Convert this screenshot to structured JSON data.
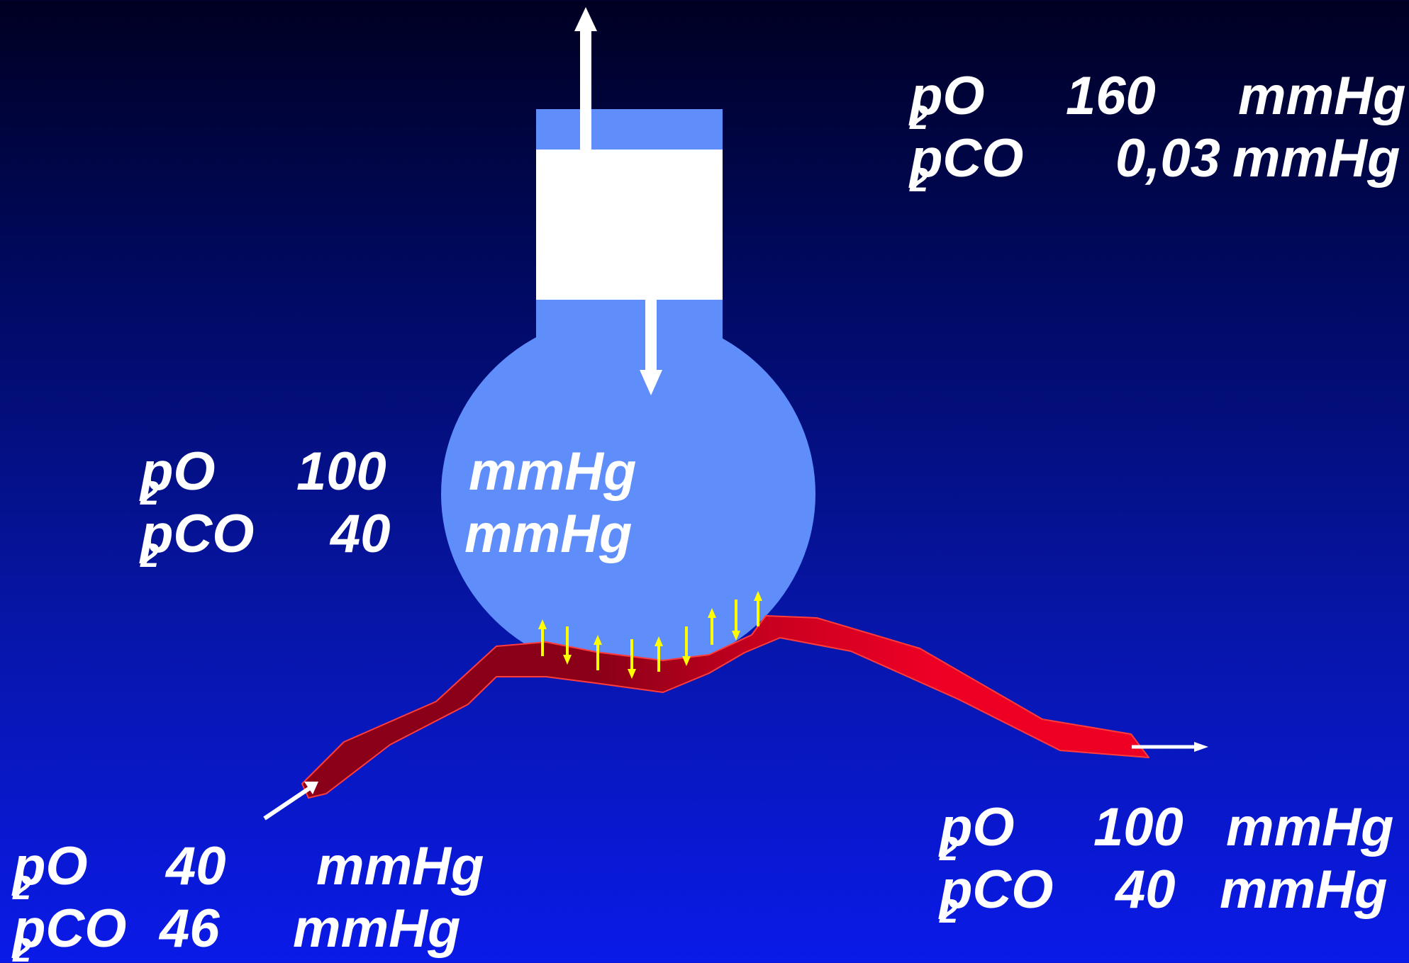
{
  "ambient_air": {
    "o2": {
      "param": "pO",
      "subscript": "2",
      "value": "160",
      "unit": "mmHg"
    },
    "co2": {
      "param": "pCO",
      "subscript": "2",
      "value": "0,03",
      "unit": "mmHg"
    }
  },
  "alveolar": {
    "o2": {
      "param": "pO",
      "subscript": "2",
      "value": "100",
      "unit": "mmHg"
    },
    "co2": {
      "param": "pCO",
      "subscript": "2",
      "value": "40",
      "unit": "mmHg"
    }
  },
  "venous_inflow": {
    "o2": {
      "param": "pO",
      "subscript": "2",
      "value": "40",
      "unit": "mmHg"
    },
    "co2": {
      "param": "pCO",
      "subscript": "2",
      "value": "46",
      "unit": "mmHg"
    }
  },
  "arterial_outflow": {
    "o2": {
      "param": "pO",
      "subscript": "2",
      "value": "100",
      "unit": "mmHg"
    },
    "co2": {
      "param": "pCO",
      "subscript": "2",
      "value": "40",
      "unit": "mmHg"
    }
  },
  "colors": {
    "alveolus": "#5f8dfa",
    "plunger": "#ffffff",
    "venous_blood": "#8a0018",
    "arterial_blood": "#ee0025",
    "vessel_outline": "#ff3b3b",
    "exchange_arrows": "#ffff00",
    "flow_arrows": "#ffffff"
  }
}
